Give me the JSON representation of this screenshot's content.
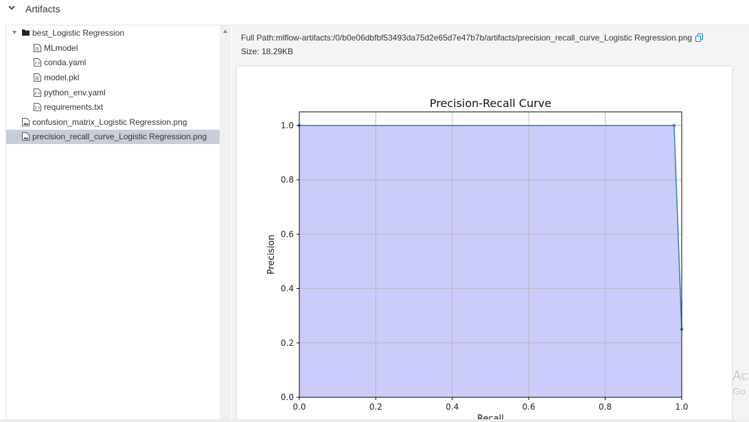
{
  "section": {
    "title": "Artifacts"
  },
  "tree": {
    "items": [
      {
        "label": "best_Logistic Regression",
        "kind": "folder"
      },
      {
        "label": "MLmodel",
        "kind": "file"
      },
      {
        "label": "conda.yaml",
        "kind": "code"
      },
      {
        "label": "model.pkl",
        "kind": "file"
      },
      {
        "label": "python_env.yaml",
        "kind": "code"
      },
      {
        "label": "requirements.txt",
        "kind": "code"
      },
      {
        "label": "confusion_matrix_Logistic Regression.png",
        "kind": "image"
      },
      {
        "label": "precision_recall_curve_Logistic Regression.png",
        "kind": "image",
        "selected": true
      }
    ]
  },
  "file_info": {
    "full_path_label": "Full Path:",
    "full_path": "mlflow-artifacts:/0/b0e06dbfbf53493da75d2e65d7e47b7b/artifacts/precision_recall_curve_Logistic Regression.png",
    "size_label": "Size: 18.29KB"
  },
  "chart_data": {
    "type": "area",
    "title": "Precision-Recall Curve",
    "xlabel": "Recall",
    "ylabel": "Precision",
    "x": [
      0.0,
      0.98,
      1.0
    ],
    "y": [
      1.0,
      1.0,
      0.25
    ],
    "xlim": [
      0.0,
      1.0
    ],
    "ylim": [
      0.0,
      1.05
    ],
    "xticks": [
      "0.0",
      "0.2",
      "0.4",
      "0.6",
      "0.8",
      "1.0"
    ],
    "yticks": [
      "0.0",
      "0.2",
      "0.4",
      "0.6",
      "0.8",
      "1.0"
    ],
    "grid": true,
    "line_color": "#3b7fc4",
    "fill_color": "#ccccfa"
  },
  "watermark": {
    "line1": "Ac",
    "line2": "Go"
  },
  "colors": {
    "selected_row": "#c7ced9",
    "panel_bg": "#f4f4f4",
    "accent": "#0078d4"
  }
}
